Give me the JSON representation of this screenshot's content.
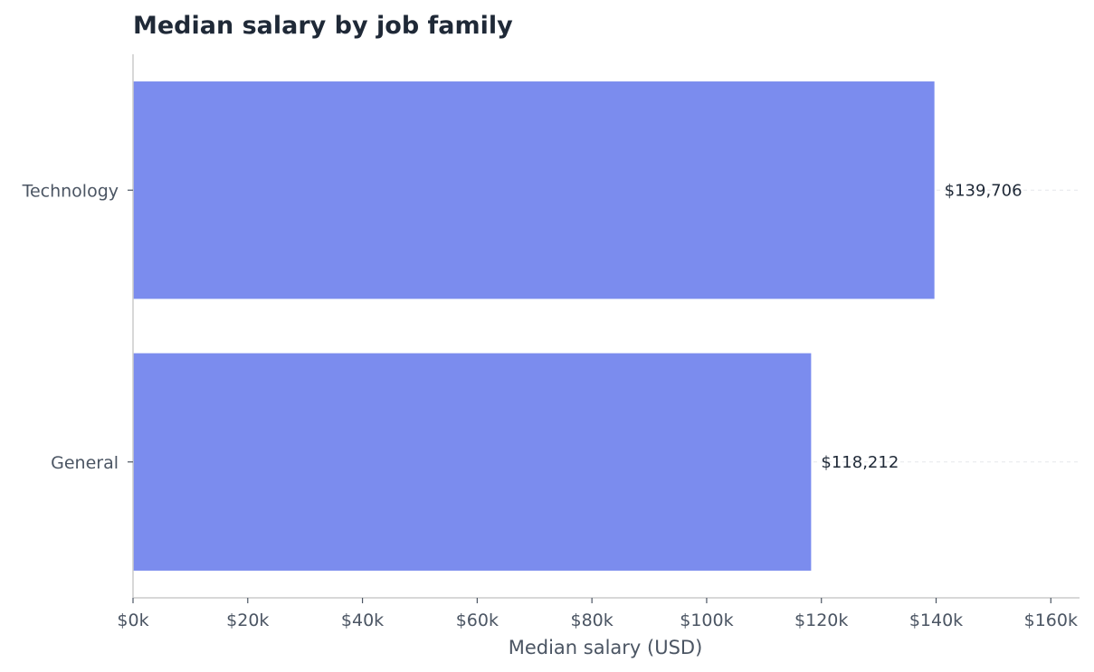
{
  "chart_data": {
    "type": "bar",
    "orientation": "horizontal",
    "title": "Median salary by job family",
    "xlabel": "Median salary (USD)",
    "ylabel": "",
    "categories": [
      "Technology",
      "General"
    ],
    "values": [
      139706,
      118212
    ],
    "data_labels": [
      "$139,706",
      "$118,212"
    ],
    "xlim": [
      0,
      165000
    ],
    "xticks": [
      0,
      20000,
      40000,
      60000,
      80000,
      100000,
      120000,
      140000,
      160000
    ],
    "xtick_labels": [
      "$0k",
      "$20k",
      "$40k",
      "$60k",
      "$80k",
      "$100k",
      "$120k",
      "$140k",
      "$160k"
    ],
    "grid": "horizontal dashed at category centers",
    "legend": "none",
    "bar_color": "#7b8cee"
  }
}
